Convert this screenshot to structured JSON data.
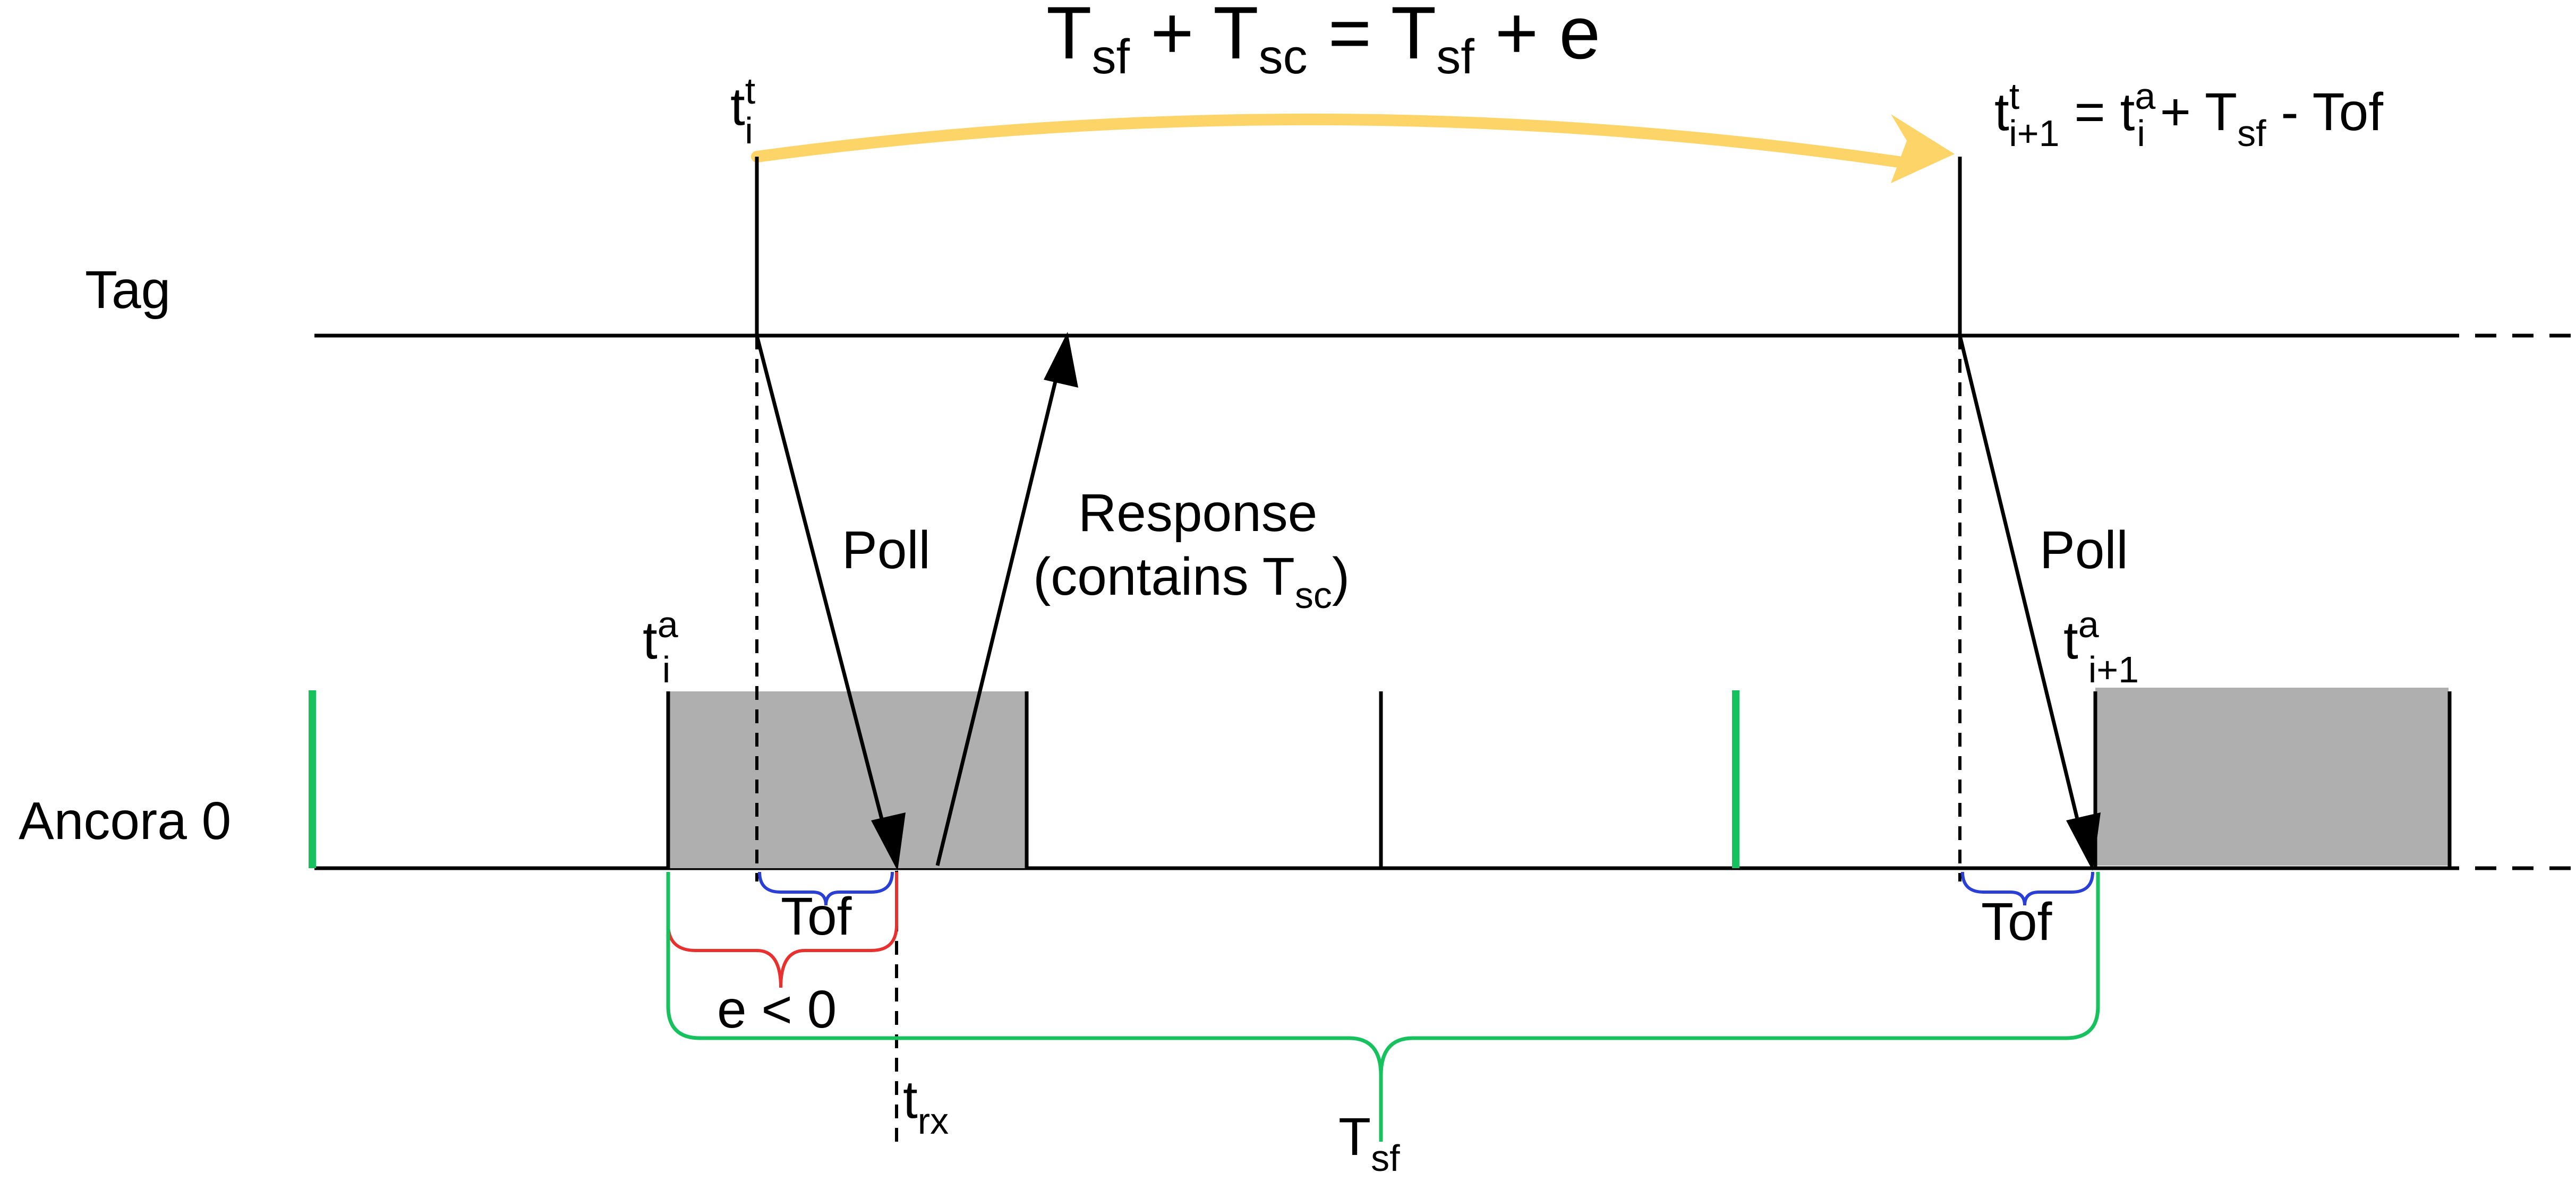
{
  "title": {
    "a": "T",
    "a_sub": "sf",
    "b": " + T",
    "b_sub": "sc",
    "c": " = T",
    "c_sub": "sf",
    "d": " + e"
  },
  "lanes": {
    "tag": "Tag",
    "anchor": "Ancora 0"
  },
  "labels": {
    "t_i_t": {
      "base": "t",
      "sup": "t",
      "sub": "i"
    },
    "t_next": {
      "base": "t",
      "sup": "t",
      "sub": "i+1",
      "rest1": " = t",
      "sup2": "a",
      "sub2": "i",
      "rest2": " + T",
      "sub3": "sf",
      "rest3": " - Tof"
    },
    "t_i_a": {
      "base": "t",
      "sup": "a",
      "sub": "i"
    },
    "t_next_a": {
      "base": "t",
      "sup": "a",
      "sub": "i+1"
    },
    "poll_1": "Poll",
    "poll_2": "Poll",
    "response_line1": "Response",
    "response_line2": {
      "a": "(contains T",
      "sub": "sc",
      "b": ")"
    },
    "tof_1": "Tof",
    "tof_2": "Tof",
    "e_less": "e < 0",
    "trx": {
      "base": "t",
      "sub": "rx"
    },
    "tsf": {
      "base": "T",
      "sub": "sf"
    }
  },
  "colors": {
    "arc": "#FCD468",
    "green": "#17C25E",
    "red": "#E8312E",
    "blue": "#2A3FD6",
    "slot_fill": "#AFAFAF",
    "line": "#000000"
  }
}
